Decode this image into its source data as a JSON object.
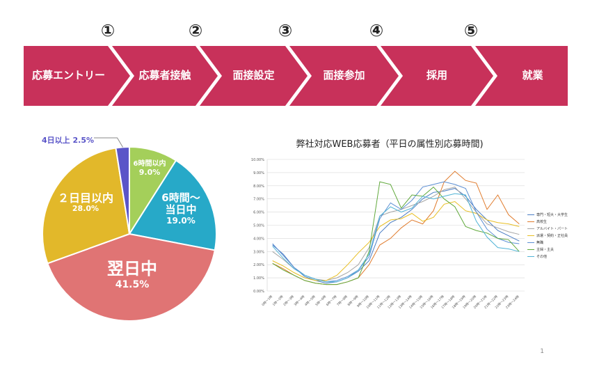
{
  "flow": {
    "color": "#c8315a",
    "steps": [
      {
        "num": "",
        "label": "応募エントリー"
      },
      {
        "num": "①",
        "label": "応募者接触"
      },
      {
        "num": "②",
        "label": "面接設定"
      },
      {
        "num": "③",
        "label": "面接参加"
      },
      {
        "num": "④",
        "label": "採用"
      },
      {
        "num": "⑤",
        "label": "就業"
      }
    ]
  },
  "pie": {
    "chart_data": {
      "type": "pie",
      "slices": [
        {
          "label": "6時間以内",
          "value": 9.0,
          "pct_text": "9.0%",
          "color": "#a4cf5a"
        },
        {
          "label": "6時間〜当日中",
          "value": 19.0,
          "pct_text": "19.0%",
          "color": "#27a9c8"
        },
        {
          "label": "翌日中",
          "value": 41.5,
          "pct_text": "41.5%",
          "color": "#e07474"
        },
        {
          "label": "２日目以内",
          "value": 28.0,
          "pct_text": "28.0%",
          "color": "#e2b82a"
        },
        {
          "label": "4日以上",
          "value": 2.5,
          "pct_text": "2.5%",
          "color": "#5a55c8"
        }
      ]
    },
    "label_line1_b": "6時間〜",
    "label_line2_b": "当日中",
    "small_label": "4日以上 2.5%"
  },
  "line": {
    "title": "弊社対応WEB応募者（平日の属性別応募時間)",
    "chart_data": {
      "type": "line",
      "x": [
        "0時〜1時",
        "1時〜2時",
        "2時〜3時",
        "3時〜4時",
        "4時〜5時",
        "5時〜6時",
        "6時〜7時",
        "7時〜8時",
        "8時〜9時",
        "9時〜10時",
        "10時〜11時",
        "11時〜12時",
        "12時〜13時",
        "13時〜14時",
        "14時〜15時",
        "15時〜16時",
        "16時〜17時",
        "17時〜18時",
        "18時〜19時",
        "19時〜20時",
        "20時〜21時",
        "21時〜22時",
        "22時〜23時",
        "23時〜24時"
      ],
      "ylim": [
        0,
        10
      ],
      "yticks": [
        "0.00%",
        "1.00%",
        "2.00%",
        "3.00%",
        "4.00%",
        "5.00%",
        "6.00%",
        "7.00%",
        "8.00%",
        "9.00%",
        "10.00%"
      ],
      "series": [
        {
          "name": "専門・短大・大学生",
          "color": "#4a7dc4",
          "values": [
            3.5,
            2.8,
            1.8,
            1.1,
            0.8,
            0.6,
            0.7,
            1.0,
            1.5,
            2.3,
            4.4,
            5.2,
            5.6,
            6.2,
            7.0,
            7.5,
            7.6,
            7.8,
            7.2,
            6.2,
            5.4,
            4.6,
            4.2,
            3.8
          ]
        },
        {
          "name": "高校生",
          "color": "#e07b2c",
          "values": [
            2.1,
            1.7,
            1.2,
            0.8,
            0.6,
            0.5,
            0.5,
            0.7,
            1.0,
            2.0,
            3.5,
            4.0,
            4.8,
            5.4,
            5.1,
            6.1,
            8.3,
            9.1,
            8.4,
            8.2,
            6.2,
            7.3,
            5.8,
            5.1
          ]
        },
        {
          "name": "アルバイト・パート",
          "color": "#a5a5a5",
          "values": [
            3.0,
            2.4,
            1.7,
            1.2,
            0.9,
            0.8,
            1.0,
            1.4,
            2.0,
            3.3,
            5.7,
            6.0,
            6.2,
            6.5,
            6.8,
            7.2,
            7.7,
            7.9,
            7.0,
            6.0,
            5.1,
            4.8,
            4.5,
            4.3
          ]
        },
        {
          "name": "派遣・契約・正社員",
          "color": "#e8be22",
          "values": [
            2.3,
            1.9,
            1.4,
            1.0,
            0.8,
            0.8,
            1.2,
            2.0,
            2.9,
            3.7,
            4.9,
            5.4,
            5.5,
            5.9,
            5.3,
            5.6,
            6.6,
            6.8,
            6.1,
            5.9,
            5.4,
            5.2,
            5.1,
            4.9
          ]
        },
        {
          "name": "無職",
          "color": "#5c8fd3",
          "values": [
            3.6,
            2.7,
            1.8,
            1.2,
            0.9,
            0.7,
            0.8,
            1.1,
            1.6,
            2.6,
            5.5,
            6.7,
            6.2,
            6.9,
            7.9,
            8.1,
            8.3,
            8.1,
            7.8,
            6.0,
            4.7,
            4.0,
            3.7,
            3.6
          ]
        },
        {
          "name": "主婦・主夫",
          "color": "#5fa83a",
          "values": [
            2.1,
            1.6,
            1.2,
            0.8,
            0.6,
            0.5,
            0.5,
            0.7,
            1.0,
            3.0,
            8.3,
            8.1,
            6.3,
            7.3,
            7.2,
            7.9,
            7.0,
            6.4,
            4.9,
            4.6,
            4.4,
            4.0,
            3.9,
            3.0
          ]
        },
        {
          "name": "その他",
          "color": "#4fb3d6",
          "values": [
            3.4,
            2.5,
            1.7,
            1.2,
            0.9,
            0.7,
            0.7,
            1.0,
            1.6,
            2.8,
            5.7,
            6.4,
            6.0,
            6.3,
            7.2,
            7.0,
            7.2,
            7.4,
            7.3,
            5.3,
            4.1,
            3.3,
            3.2,
            3.0
          ]
        }
      ]
    }
  },
  "page_number": "1"
}
